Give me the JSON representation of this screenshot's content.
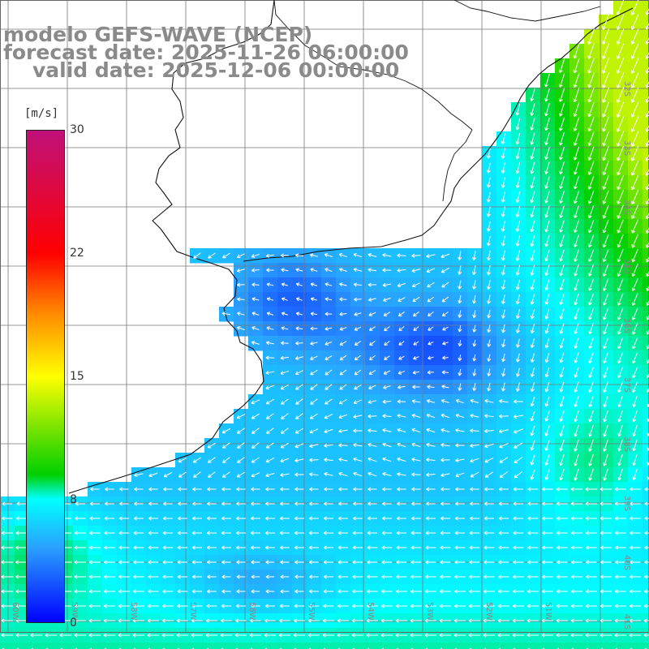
{
  "title": {
    "model": "modelo GEFS-WAVE (NCEP)",
    "forecast": "forecast date: 2025-11-26 06:00:00",
    "valid": "valid date: 2025-12-06 00:00:00"
  },
  "legend": {
    "unit": "[m/s]",
    "ticks": [
      "30",
      "22",
      "15",
      "8",
      "0"
    ],
    "tick_values": [
      30,
      22,
      15,
      8,
      0
    ],
    "colors": {
      "0": "#0000ff",
      "4": "#2a9fff",
      "8": "#00ffff",
      "11": "#00d000",
      "15": "#ffff00",
      "19": "#ff8800",
      "22": "#ff0000",
      "30": "#c0107a"
    }
  },
  "axes": {
    "lat_labels": [
      "32S",
      "33S",
      "34S",
      "35S",
      "36S",
      "37S",
      "38S",
      "39S",
      "40S",
      "41S"
    ],
    "lon_labels": [
      "60W",
      "59W",
      "58W",
      "57W",
      "56W",
      "55W",
      "54W",
      "53W",
      "52W",
      "51W"
    ]
  }
}
